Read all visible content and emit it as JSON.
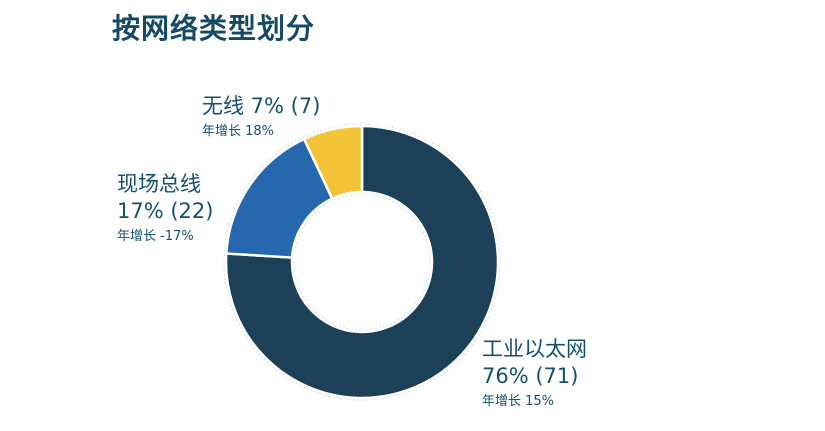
{
  "page": {
    "title": "按网络类型划分",
    "background": "#ffffff",
    "title_color": "#154A66",
    "label_color": "#15506F"
  },
  "chart_data": {
    "type": "pie",
    "subtype": "donut",
    "title": "按网络类型划分",
    "direction": "clockwise",
    "start_angle_deg": 0,
    "inner_radius_ratio": 0.515,
    "legend_position": "labels-around-chart",
    "segments": [
      {
        "id": "industrial-ethernet",
        "label": "工业以太网",
        "percent": 76,
        "count": 71,
        "yoy_growth": "15%",
        "color": "#1C4058"
      },
      {
        "id": "fieldbus",
        "label": "现场总线",
        "percent": 17,
        "count": 22,
        "yoy_growth": "-17%",
        "color": "#2767AE"
      },
      {
        "id": "wireless",
        "label": "无线",
        "percent": 7,
        "count": 7,
        "yoy_growth": "18%",
        "color": "#F3C437"
      }
    ]
  },
  "labels": {
    "wireless": {
      "line1": "无线 7% (7)",
      "growth": "年增长 18%"
    },
    "fieldbus": {
      "line1": "现场总线",
      "line2": "17% (22)",
      "growth": "年增长 -17%"
    },
    "ethernet": {
      "line1": "工业以太网",
      "line2": "76% (71)",
      "growth": "年增长 15%"
    }
  }
}
